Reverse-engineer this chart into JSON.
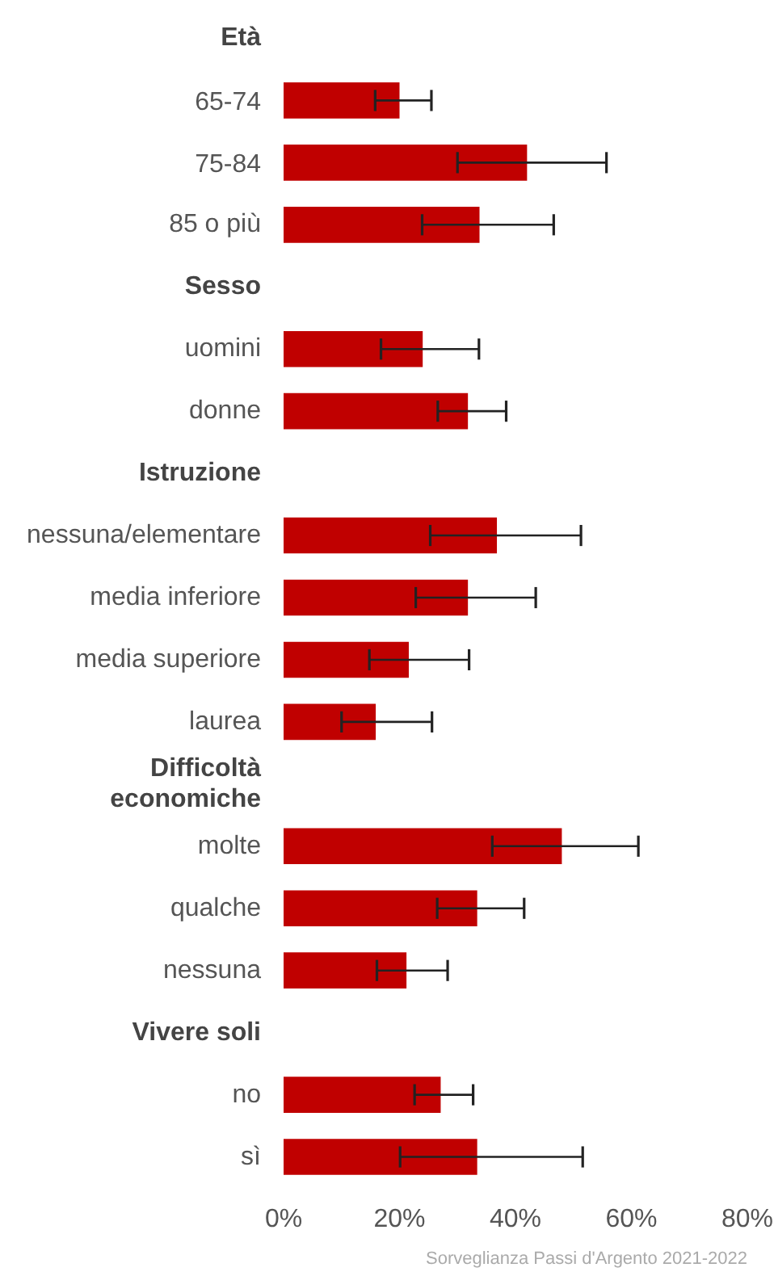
{
  "chart_data": {
    "type": "bar",
    "orientation": "horizontal",
    "categories": [
      "Età",
      "65-74",
      "75-84",
      "85 o più",
      "Sesso",
      "uomini",
      "donne",
      "Istruzione",
      "nessuna/elementare",
      "media inferiore",
      "media superiore",
      "laurea",
      "Difficoltà economiche",
      "molte",
      "qualche",
      "nessuna",
      "Vivere soli",
      "no",
      "sì"
    ],
    "values": [
      null,
      20.0,
      42.0,
      33.8,
      null,
      24.0,
      31.8,
      null,
      36.8,
      31.8,
      21.6,
      15.9,
      null,
      48.0,
      33.4,
      21.2,
      null,
      27.1,
      33.4
    ],
    "errors": [
      null,
      [
        15.8,
        25.5
      ],
      [
        30.0,
        55.7
      ],
      [
        23.9,
        46.6
      ],
      null,
      [
        16.8,
        33.7
      ],
      [
        26.6,
        38.4
      ],
      null,
      [
        25.3,
        51.3
      ],
      [
        22.8,
        43.5
      ],
      [
        14.8,
        32.0
      ],
      [
        10.0,
        25.6
      ],
      null,
      [
        36.0,
        61.2
      ],
      [
        26.5,
        41.5
      ],
      [
        16.1,
        28.3
      ],
      null,
      [
        22.6,
        32.7
      ],
      [
        20.1,
        51.6
      ]
    ],
    "color": "#c00000",
    "xlim": [
      0,
      80
    ],
    "xticks": [
      {
        "value": 0,
        "label": "0%"
      },
      {
        "value": 20,
        "label": "20%"
      },
      {
        "value": 40,
        "label": "40%"
      },
      {
        "value": 60,
        "label": "60%"
      },
      {
        "value": 80,
        "label": "80%"
      }
    ],
    "grid": false,
    "annotations": [
      "Sorveglianza Passi d'Argento 2021-2022"
    ]
  }
}
